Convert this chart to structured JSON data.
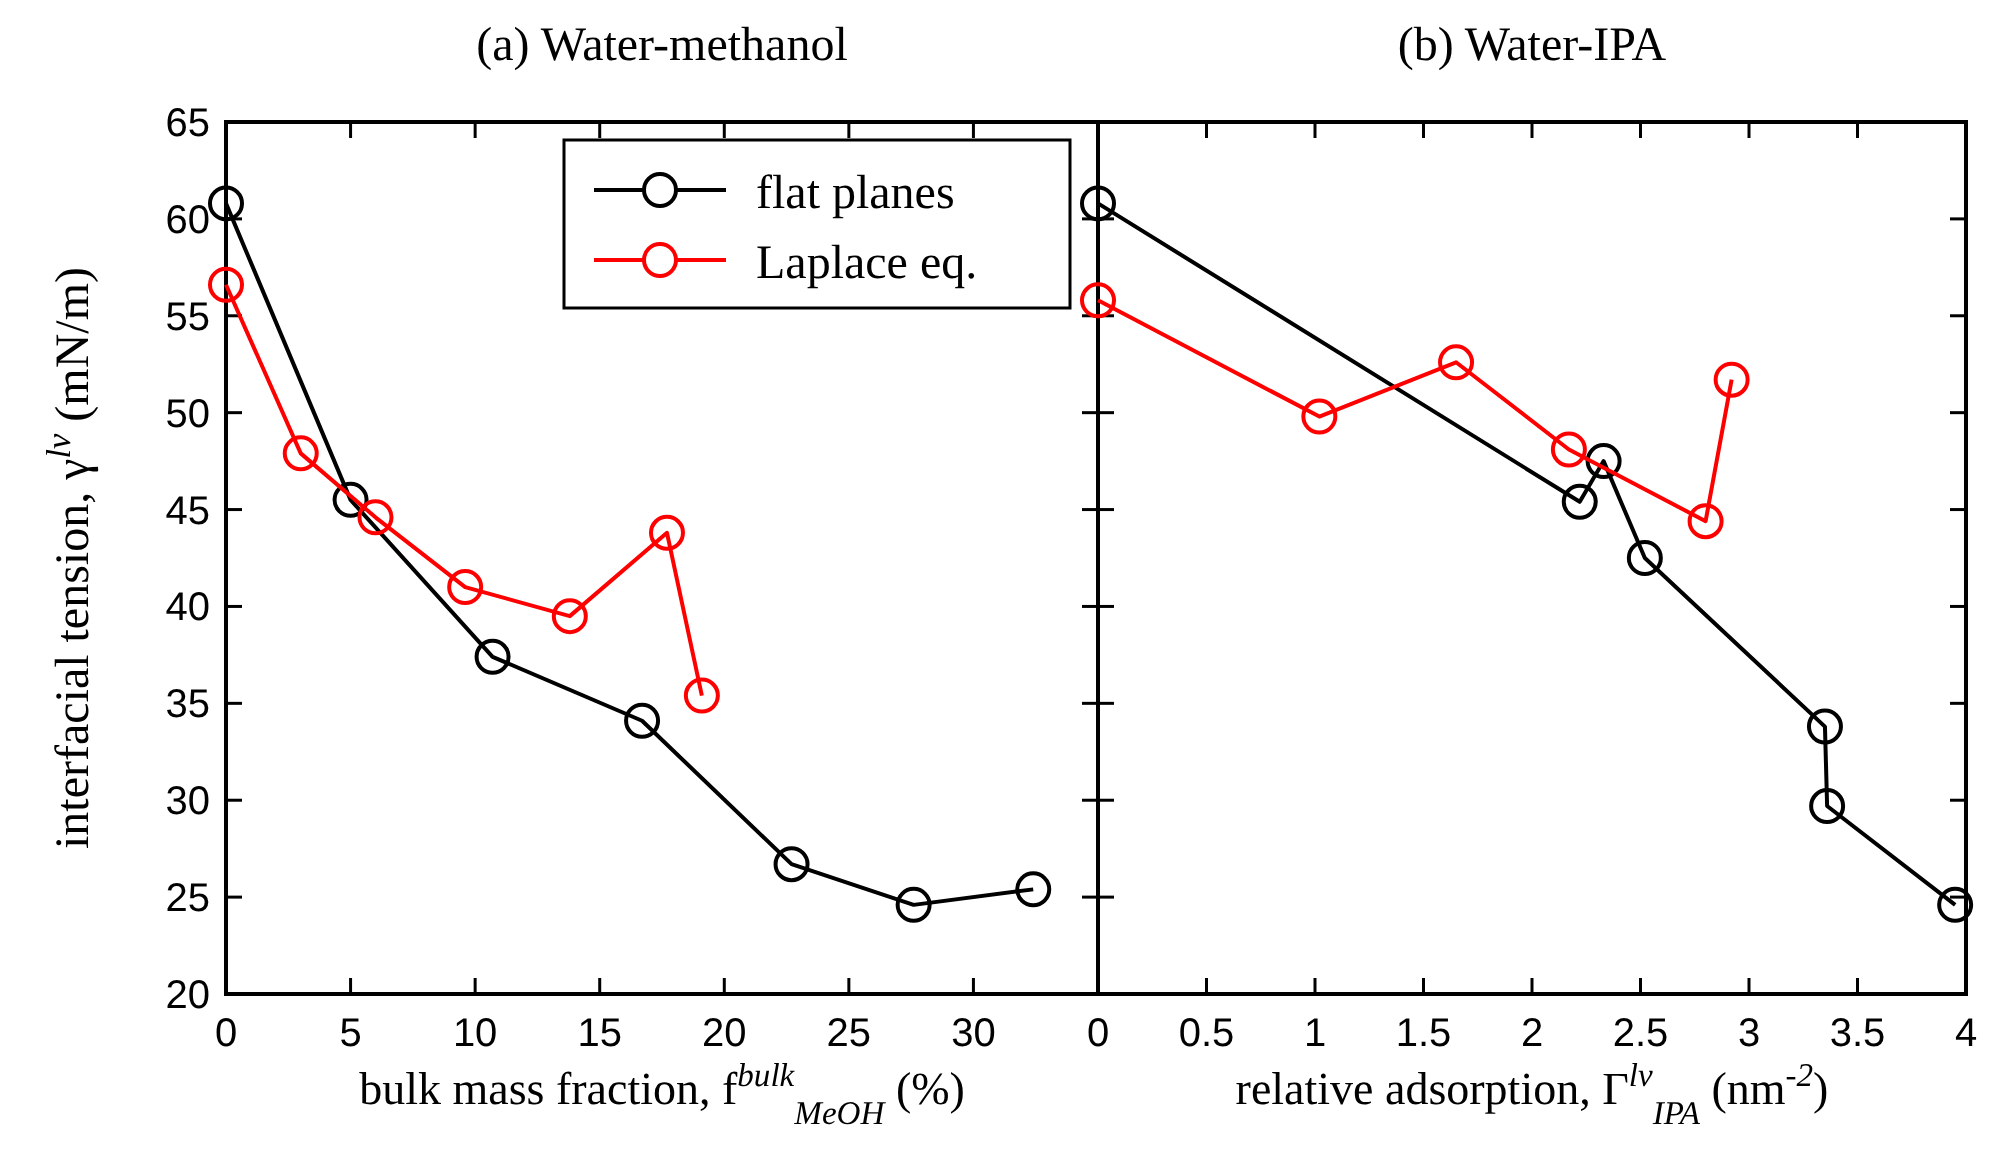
{
  "chart_data": [
    {
      "type": "line",
      "title": "(a) Water-methanol",
      "xlabel": "bulk mass fraction, f$^{bulk}$$_{MeOH}$ (%)",
      "ylabel": "interfacial tension, γ$^{lv}$ (mN/m)",
      "xlim": [
        0,
        35
      ],
      "xticks": [
        0,
        5,
        10,
        15,
        20,
        25,
        30
      ],
      "ylim": [
        20,
        65
      ],
      "yticks": [
        20,
        25,
        30,
        35,
        40,
        45,
        50,
        55,
        60,
        65
      ],
      "marker": "circle",
      "legend": "top right",
      "grid": false,
      "series": [
        {
          "name": "flat planes",
          "color": "#000000",
          "x": [
            0,
            5,
            10.7,
            16.7,
            22.7,
            27.6,
            32.4
          ],
          "values": [
            60.8,
            45.5,
            37.4,
            34.1,
            26.7,
            24.6,
            25.4
          ]
        },
        {
          "name": "Laplace eq.",
          "color": "#ff0000",
          "x": [
            0,
            3,
            6,
            9.6,
            13.8,
            17.7,
            19.1
          ],
          "values": [
            56.6,
            47.9,
            44.6,
            41,
            39.5,
            43.8,
            35.4
          ]
        }
      ]
    },
    {
      "type": "line",
      "title": "(b) Water-IPA",
      "xlabel": "relative adsorption, Γ$^{lv}$$_{IPA}$ (nm$^{-2}$)",
      "xlim": [
        0,
        4
      ],
      "xticks": [
        0,
        0.5,
        1,
        1.5,
        2,
        2.5,
        3,
        3.5,
        4
      ],
      "ylim": [
        20,
        65
      ],
      "yticks": [
        20,
        25,
        30,
        35,
        40,
        45,
        50,
        55,
        60,
        65
      ],
      "tick_labels": "x",
      "marker": "circle",
      "grid": false,
      "series": [
        {
          "color": "#000000",
          "x": [
            0,
            2.22,
            2.33,
            2.52,
            3.35,
            3.36,
            3.95
          ],
          "values": [
            60.8,
            45.4,
            47.5,
            42.5,
            33.8,
            29.7,
            24.6
          ]
        },
        {
          "color": "#ff0000",
          "x": [
            0,
            1.02,
            1.65,
            2.17,
            2.8,
            2.92
          ],
          "values": [
            55.8,
            49.8,
            52.6,
            48.1,
            44.4,
            51.7
          ]
        }
      ]
    }
  ]
}
